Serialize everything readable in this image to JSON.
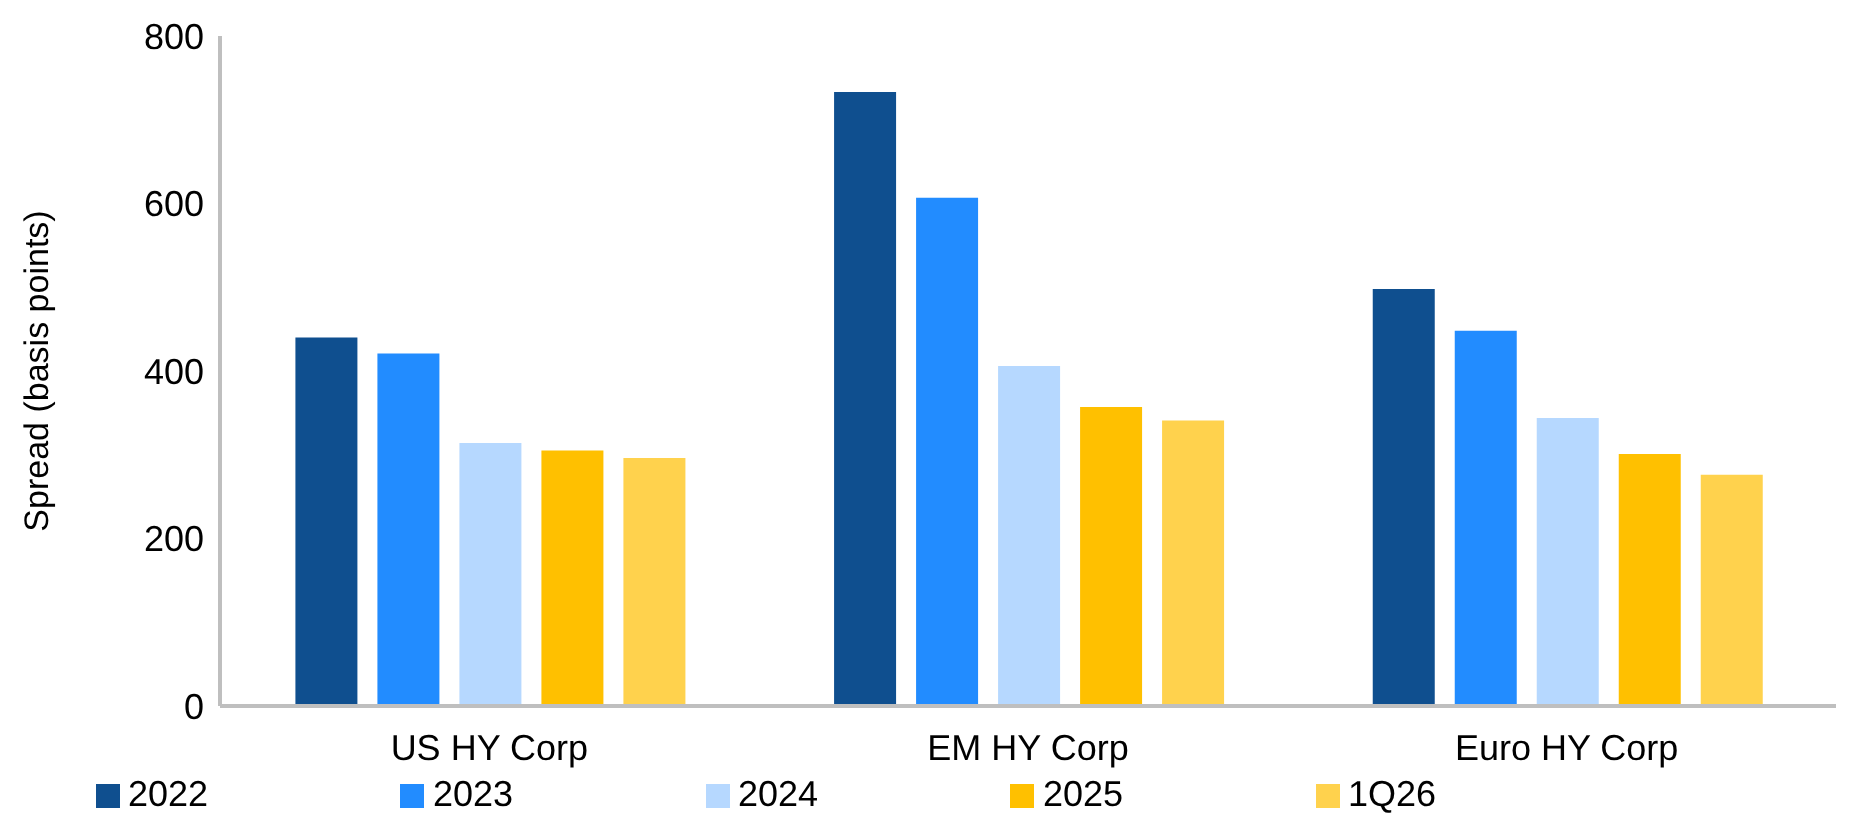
{
  "chart_data": {
    "type": "bar",
    "ylabel": "Spread (basis points)",
    "categories": [
      "US HY Corp",
      "EM HY Corp",
      "Euro HY Corp"
    ],
    "series": [
      {
        "name": "2022",
        "color": "#0f4f8f",
        "values": [
          440,
          733,
          498
        ]
      },
      {
        "name": "2023",
        "color": "#228cff",
        "values": [
          421,
          607,
          448
        ]
      },
      {
        "name": "2024",
        "color": "#b6d8ff",
        "values": [
          314,
          406,
          344
        ]
      },
      {
        "name": "2025",
        "color": "#ffc000",
        "values": [
          305,
          357,
          301
        ]
      },
      {
        "name": "1Q26",
        "color": "#ffd24d",
        "values": [
          296,
          341,
          276
        ]
      }
    ],
    "ylim": [
      0,
      800
    ],
    "yticks": [
      0,
      200,
      400,
      600,
      800
    ],
    "grid": false,
    "legend": "bottom"
  }
}
